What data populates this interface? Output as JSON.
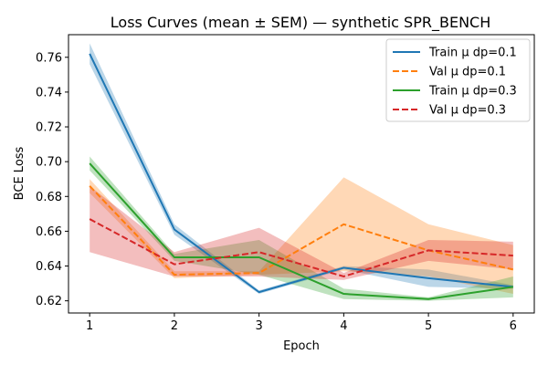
{
  "chart_data": {
    "type": "line",
    "title": "Loss Curves (mean ± SEM) — synthetic SPR_BENCH",
    "xlabel": "Epoch",
    "ylabel": "BCE Loss",
    "x": [
      1,
      2,
      3,
      4,
      5,
      6
    ],
    "xlim": [
      0.75,
      6.25
    ],
    "ylim": [
      0.613,
      0.773
    ],
    "xticks": [
      1,
      2,
      3,
      4,
      5,
      6
    ],
    "yticks": [
      0.62,
      0.64,
      0.66,
      0.68,
      0.7,
      0.72,
      0.74,
      0.76
    ],
    "grid": false,
    "legend_position": "top-right",
    "series": [
      {
        "name": "Train μ dp=0.1",
        "color": "#1f77b4",
        "dash": "solid",
        "values": [
          0.762,
          0.661,
          0.625,
          0.639,
          0.633,
          0.628
        ],
        "lower": [
          0.756,
          0.658,
          0.624,
          0.638,
          0.628,
          0.627
        ],
        "upper": [
          0.768,
          0.664,
          0.626,
          0.64,
          0.638,
          0.629
        ]
      },
      {
        "name": "Val μ dp=0.1",
        "color": "#ff7f0e",
        "dash": "dashed",
        "values": [
          0.686,
          0.635,
          0.636,
          0.664,
          0.649,
          0.638
        ],
        "lower": [
          0.682,
          0.633,
          0.635,
          0.637,
          0.634,
          0.624
        ],
        "upper": [
          0.69,
          0.637,
          0.637,
          0.691,
          0.664,
          0.652
        ]
      },
      {
        "name": "Train μ dp=0.3",
        "color": "#2ca02c",
        "dash": "solid",
        "values": [
          0.699,
          0.645,
          0.645,
          0.624,
          0.621,
          0.628
        ],
        "lower": [
          0.695,
          0.643,
          0.635,
          0.621,
          0.62,
          0.622
        ],
        "upper": [
          0.703,
          0.647,
          0.655,
          0.627,
          0.622,
          0.634
        ]
      },
      {
        "name": "Val μ dp=0.3",
        "color": "#d62728",
        "dash": "dashed",
        "values": [
          0.667,
          0.641,
          0.648,
          0.634,
          0.649,
          0.646
        ],
        "lower": [
          0.648,
          0.634,
          0.634,
          0.632,
          0.643,
          0.638
        ],
        "upper": [
          0.686,
          0.648,
          0.662,
          0.636,
          0.655,
          0.654
        ]
      }
    ]
  }
}
